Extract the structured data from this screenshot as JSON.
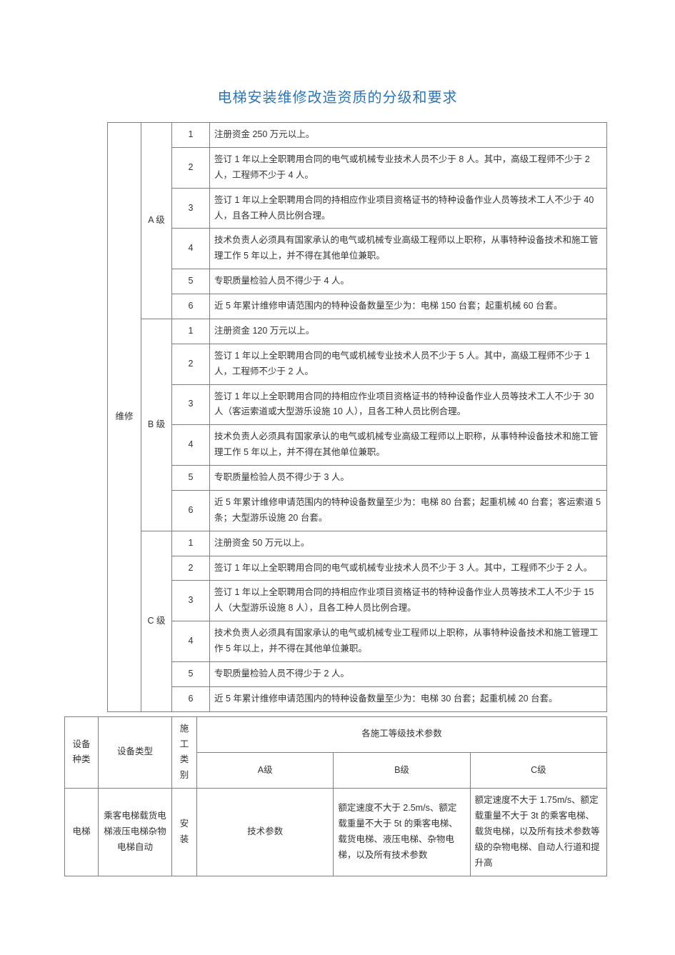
{
  "title": "电梯安装维修改造资质的分级和要求",
  "colors": {
    "title": "#2e75b6",
    "border": "#7f7f7f",
    "text": "#333333",
    "bg": "#ffffff"
  },
  "typography": {
    "title_fontsize": 20,
    "body_fontsize": 12.5,
    "line_height": 1.75
  },
  "main_table": {
    "category_label": "维修",
    "levels": [
      {
        "level": "A 级",
        "rows": [
          {
            "num": "1",
            "text": "注册资金 250 万元以上。"
          },
          {
            "num": "2",
            "text": "签订 1 年以上全职聘用合同的电气或机械专业技术人员不少于 8 人。其中，高级工程师不少于 2 人，工程师不少于 4 人。"
          },
          {
            "num": "3",
            "text": "签订 1 年以上全职聘用合同的持相应作业项目资格证书的特种设备作业人员等技术工人不少于 40 人，且各工种人员比例合理。"
          },
          {
            "num": "4",
            "text": "技术负责人必须具有国家承认的电气或机械专业高级工程师以上职称，从事特种设备技术和施工管理工作 5 年以上，并不得在其他单位兼职。"
          },
          {
            "num": "5",
            "text": "专职质量检验人员不得少于 4 人。"
          },
          {
            "num": "6",
            "text": "近 5 年累计维修申请范围内的特种设备数量至少为：电梯 150 台套；起重机械 60 台套。"
          }
        ]
      },
      {
        "level": "B 级",
        "rows": [
          {
            "num": "1",
            "text": "注册资金 120 万元以上。"
          },
          {
            "num": "2",
            "text": "签订 1 年以上全职聘用合同的电气或机械专业技术人员不少于 5 人。其中，高级工程师不少于 1 人，工程师不少于 2 人。"
          },
          {
            "num": "3",
            "text": "签订 1 年以上全职聘用合同的持相应作业项目资格证书的特种设备作业人员等技术工人不少于 30 人（客运索道或大型游乐设施 10 人），且各工种人员比例合理。"
          },
          {
            "num": "4",
            "text": "技术负责人必须具有国家承认的电气或机械专业高级工程师以上职称，从事特种设备技术和施工管理工作 5 年以上，并不得在其他单位兼职。"
          },
          {
            "num": "5",
            "text": "专职质量检验人员不得少于 3 人。"
          },
          {
            "num": "6",
            "text": "近 5 年累计维修申请范围内的特种设备数量至少为：电梯 80 台套；起重机械 40 台套；客运索道 5 条；大型游乐设施 20 台套。"
          }
        ]
      },
      {
        "level": "C 级",
        "rows": [
          {
            "num": "1",
            "text": "注册资金 50 万元以上。"
          },
          {
            "num": "2",
            "text": "签订 1 年以上全职聘用合同的电气或机械专业技术人员不少于 3 人。其中，工程师不少于 2 人。"
          },
          {
            "num": "3",
            "text": "签订 1 年以上全职聘用合同的持相应作业项目资格证书的特种设备作业人员等技术工人不少于 15 人（大型游乐设施 8 人），且各工种人员比例合理。"
          },
          {
            "num": "4",
            "text": "技术负责人必须具有国家承认的电气或机械专业工程师以上职称，从事特种设备技术和施工管理工作 5 年以上，并不得在其他单位兼职。"
          },
          {
            "num": "5",
            "text": "专职质量检验人员不得少于 2 人。"
          },
          {
            "num": "6",
            "text": "近 5 年累计维修申请范围内的特种设备数量至少为：电梯 30 台套；起重机械 20 台套。"
          }
        ]
      }
    ]
  },
  "second_table": {
    "header": {
      "c1": "设备种类",
      "c2": "设备类型",
      "c3": "施工类别",
      "group": "各施工等级技术参数",
      "a": "A级",
      "b": "B级",
      "c": "C级"
    },
    "row": {
      "c1": "电梯",
      "c2": "乘客电梯载货电梯液压电梯杂物电梯自动",
      "c3": "安装",
      "a": "技术参数",
      "b": "额定速度不大于 2.5m/s、额定载重量不大于 5t 的乘客电梯、载货电梯、液压电梯、杂物电梯，以及所有技术参数",
      "c": "额定速度不大于 1.75m/s、额定载重量不大于 3t 的乘客电梯、载货电梯，以及所有技术参数等级的杂物电梯、自动人行道和提升高"
    }
  }
}
